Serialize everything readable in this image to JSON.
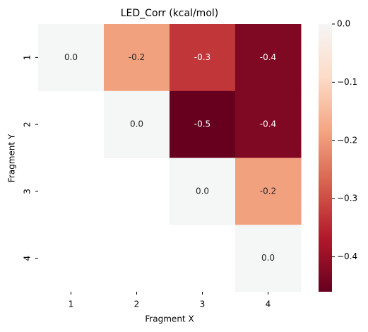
{
  "chart_data": {
    "type": "heatmap",
    "title": "LED_Corr (kcal/mol)",
    "x_label": "Fragment X",
    "y_label": "Fragment Y",
    "x_categories": [
      "1",
      "2",
      "3",
      "4"
    ],
    "y_categories": [
      "1",
      "2",
      "3",
      "4"
    ],
    "values": [
      [
        0.0,
        -0.19,
        -0.33,
        -0.43
      ],
      [
        null,
        0.0,
        -0.46,
        -0.43
      ],
      [
        null,
        null,
        0.0,
        -0.19
      ],
      [
        null,
        null,
        null,
        0.0
      ]
    ],
    "value_labels": [
      [
        "0.0",
        "-0.2",
        "-0.3",
        "-0.4"
      ],
      [
        null,
        "0.0",
        "-0.5",
        "-0.4"
      ],
      [
        null,
        null,
        "0.0",
        "-0.2"
      ],
      [
        null,
        null,
        null,
        "0.0"
      ]
    ],
    "colormap": [
      "#67001f",
      "#b2182b",
      "#d6604d",
      "#f4a582",
      "#fddbc7",
      "#f5f6f6"
    ],
    "colorbar_lim": [
      -0.46,
      0
    ],
    "colorbar_ticks": [
      {
        "value": 0,
        "label": "0.0"
      },
      {
        "value": -0.1,
        "label": "−0.1"
      },
      {
        "value": -0.2,
        "label": "−0.2"
      },
      {
        "value": -0.3,
        "label": "−0.3"
      },
      {
        "value": -0.4,
        "label": "−0.4"
      }
    ]
  }
}
